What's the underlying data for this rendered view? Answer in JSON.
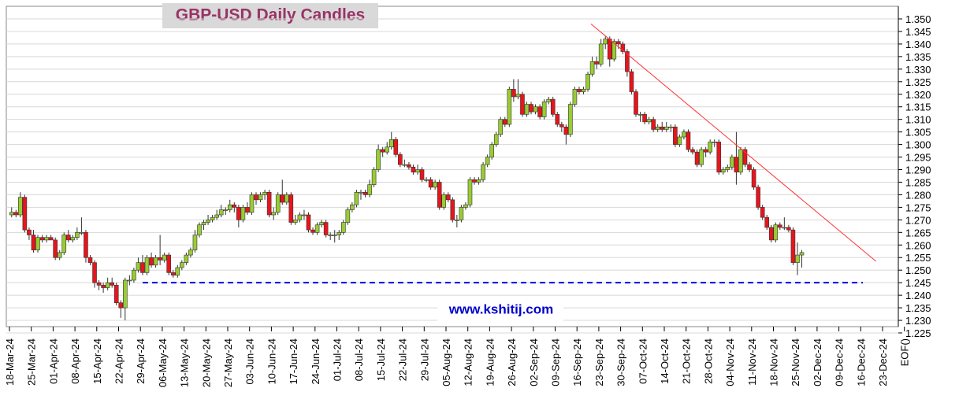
{
  "chart_data": {
    "type": "candlestick",
    "title": "GBP-USD Daily Candles",
    "watermark": "www.kshitij.com",
    "up_color": "#99cc33",
    "down_color": "#e8141c",
    "categories": [
      "18-Mar-24",
      "25-Mar-24",
      "01-Apr-24",
      "08-Apr-24",
      "15-Apr-24",
      "22-Apr-24",
      "29-Apr-24",
      "06-May-24",
      "13-May-24",
      "20-May-24",
      "27-May-24",
      "03-Jun-24",
      "10-Jun-24",
      "17-Jun-24",
      "24-Jun-24",
      "01-Jul-24",
      "08-Jul-24",
      "15-Jul-24",
      "22-Jul-24",
      "29-Jul-24",
      "05-Aug-24",
      "12-Aug-24",
      "19-Aug-24",
      "26-Aug-24",
      "02-Sep-24",
      "09-Sep-24",
      "16-Sep-24",
      "23-Sep-24",
      "30-Sep-24",
      "07-Oct-24",
      "14-Oct-24",
      "21-Oct-24",
      "28-Oct-24",
      "04-Nov-24",
      "11-Nov-24",
      "18-Nov-24",
      "25-Nov-24",
      "02-Dec-24",
      "09-Dec-24",
      "16-Dec-24",
      "23-Dec-24",
      "EOF()"
    ],
    "ylim": [
      1.225,
      1.35
    ],
    "yticks": [
      {
        "value": 1.225,
        "label": "1.225"
      },
      {
        "value": 1.23,
        "label": "1.230"
      },
      {
        "value": 1.235,
        "label": "1.235"
      },
      {
        "value": 1.24,
        "label": "1.240"
      },
      {
        "value": 1.245,
        "label": "1.245"
      },
      {
        "value": 1.25,
        "label": "1.250"
      },
      {
        "value": 1.255,
        "label": "1.255"
      },
      {
        "value": 1.26,
        "label": "1.260"
      },
      {
        "value": 1.265,
        "label": "1.265"
      },
      {
        "value": 1.27,
        "label": "1.270"
      },
      {
        "value": 1.275,
        "label": "1.275"
      },
      {
        "value": 1.28,
        "label": "1.280"
      },
      {
        "value": 1.285,
        "label": "1.285"
      },
      {
        "value": 1.29,
        "label": "1.290"
      },
      {
        "value": 1.295,
        "label": "1.295"
      },
      {
        "value": 1.3,
        "label": "1.300"
      },
      {
        "value": 1.305,
        "label": "1.305"
      },
      {
        "value": 1.31,
        "label": "1.310"
      },
      {
        "value": 1.315,
        "label": "1.315"
      },
      {
        "value": 1.32,
        "label": "1.320"
      },
      {
        "value": 1.325,
        "label": "1.325"
      },
      {
        "value": 1.33,
        "label": "1.330"
      },
      {
        "value": 1.335,
        "label": "1.335"
      },
      {
        "value": 1.34,
        "label": "1.340"
      },
      {
        "value": 1.345,
        "label": "1.345"
      },
      {
        "value": 1.35,
        "label": "1.350"
      }
    ],
    "grid": true,
    "trendline": {
      "x": [
        132.7,
        198
      ],
      "y": [
        1.348,
        1.2535
      ],
      "color": "#ff3333"
    },
    "hline": {
      "value": 1.245,
      "x": [
        30,
        195
      ],
      "color": "#0000ee"
    },
    "ohlc": [
      [
        1.272,
        1.275,
        1.271,
        1.273
      ],
      [
        1.273,
        1.274,
        1.271,
        1.272
      ],
      [
        1.272,
        1.281,
        1.271,
        1.279
      ],
      [
        1.279,
        1.28,
        1.265,
        1.266
      ],
      [
        1.266,
        1.267,
        1.262,
        1.264
      ],
      [
        1.264,
        1.266,
        1.257,
        1.258
      ],
      [
        1.258,
        1.264,
        1.257,
        1.263
      ],
      [
        1.263,
        1.264,
        1.261,
        1.262
      ],
      [
        1.262,
        1.264,
        1.261,
        1.263
      ],
      [
        1.263,
        1.264,
        1.262,
        1.262
      ],
      [
        1.262,
        1.263,
        1.254,
        1.255
      ],
      [
        1.255,
        1.258,
        1.254,
        1.257
      ],
      [
        1.257,
        1.265,
        1.256,
        1.264
      ],
      [
        1.264,
        1.266,
        1.261,
        1.262
      ],
      [
        1.262,
        1.264,
        1.261,
        1.263
      ],
      [
        1.263,
        1.267,
        1.262,
        1.265
      ],
      [
        1.265,
        1.271,
        1.264,
        1.265
      ],
      [
        1.265,
        1.266,
        1.253,
        1.255
      ],
      [
        1.255,
        1.256,
        1.252,
        1.253
      ],
      [
        1.253,
        1.254,
        1.243,
        1.245
      ],
      [
        1.245,
        1.246,
        1.242,
        1.244
      ],
      [
        1.244,
        1.245,
        1.241,
        1.243
      ],
      [
        1.243,
        1.247,
        1.242,
        1.245
      ],
      [
        1.245,
        1.247,
        1.243,
        1.244
      ],
      [
        1.244,
        1.245,
        1.236,
        1.237
      ],
      [
        1.237,
        1.238,
        1.231,
        1.235
      ],
      [
        1.235,
        1.247,
        1.23,
        1.246
      ],
      [
        1.246,
        1.248,
        1.244,
        1.246
      ],
      [
        1.246,
        1.251,
        1.245,
        1.25
      ],
      [
        1.25,
        1.255,
        1.249,
        1.253
      ],
      [
        1.253,
        1.256,
        1.248,
        1.249
      ],
      [
        1.249,
        1.256,
        1.248,
        1.255
      ],
      [
        1.255,
        1.257,
        1.251,
        1.252
      ],
      [
        1.252,
        1.256,
        1.251,
        1.255
      ],
      [
        1.255,
        1.264,
        1.252,
        1.254
      ],
      [
        1.254,
        1.257,
        1.253,
        1.256
      ],
      [
        1.256,
        1.257,
        1.248,
        1.249
      ],
      [
        1.249,
        1.25,
        1.247,
        1.248
      ],
      [
        1.248,
        1.252,
        1.247,
        1.251
      ],
      [
        1.251,
        1.254,
        1.25,
        1.253
      ],
      [
        1.253,
        1.257,
        1.252,
        1.256
      ],
      [
        1.256,
        1.259,
        1.255,
        1.258
      ],
      [
        1.258,
        1.266,
        1.257,
        1.264
      ],
      [
        1.264,
        1.269,
        1.263,
        1.268
      ],
      [
        1.268,
        1.27,
        1.266,
        1.269
      ],
      [
        1.269,
        1.272,
        1.268,
        1.27
      ],
      [
        1.27,
        1.272,
        1.269,
        1.271
      ],
      [
        1.271,
        1.274,
        1.27,
        1.272
      ],
      [
        1.272,
        1.276,
        1.271,
        1.274
      ],
      [
        1.274,
        1.275,
        1.272,
        1.274
      ],
      [
        1.274,
        1.278,
        1.273,
        1.276
      ],
      [
        1.276,
        1.277,
        1.273,
        1.275
      ],
      [
        1.275,
        1.276,
        1.267,
        1.27
      ],
      [
        1.27,
        1.276,
        1.269,
        1.275
      ],
      [
        1.275,
        1.277,
        1.272,
        1.273
      ],
      [
        1.273,
        1.281,
        1.272,
        1.28
      ],
      [
        1.28,
        1.281,
        1.276,
        1.278
      ],
      [
        1.278,
        1.281,
        1.277,
        1.28
      ],
      [
        1.28,
        1.282,
        1.278,
        1.281
      ],
      [
        1.281,
        1.282,
        1.271,
        1.272
      ],
      [
        1.272,
        1.275,
        1.27,
        1.273
      ],
      [
        1.273,
        1.281,
        1.272,
        1.28
      ],
      [
        1.28,
        1.286,
        1.276,
        1.277
      ],
      [
        1.277,
        1.281,
        1.276,
        1.28
      ],
      [
        1.28,
        1.281,
        1.268,
        1.269
      ],
      [
        1.269,
        1.272,
        1.268,
        1.27
      ],
      [
        1.27,
        1.273,
        1.269,
        1.272
      ],
      [
        1.272,
        1.274,
        1.27,
        1.272
      ],
      [
        1.272,
        1.273,
        1.265,
        1.266
      ],
      [
        1.266,
        1.267,
        1.264,
        1.265
      ],
      [
        1.265,
        1.269,
        1.264,
        1.268
      ],
      [
        1.268,
        1.27,
        1.267,
        1.269
      ],
      [
        1.269,
        1.27,
        1.263,
        1.264
      ],
      [
        1.264,
        1.265,
        1.262,
        1.264
      ],
      [
        1.264,
        1.266,
        1.261,
        1.264
      ],
      [
        1.264,
        1.266,
        1.262,
        1.265
      ],
      [
        1.265,
        1.27,
        1.264,
        1.269
      ],
      [
        1.269,
        1.275,
        1.268,
        1.274
      ],
      [
        1.274,
        1.277,
        1.273,
        1.276
      ],
      [
        1.276,
        1.282,
        1.275,
        1.281
      ],
      [
        1.281,
        1.282,
        1.278,
        1.281
      ],
      [
        1.281,
        1.282,
        1.279,
        1.28
      ],
      [
        1.28,
        1.286,
        1.279,
        1.284
      ],
      [
        1.284,
        1.291,
        1.283,
        1.29
      ],
      [
        1.29,
        1.3,
        1.289,
        1.298
      ],
      [
        1.298,
        1.299,
        1.295,
        1.297
      ],
      [
        1.297,
        1.301,
        1.296,
        1.299
      ],
      [
        1.299,
        1.305,
        1.298,
        1.302
      ],
      [
        1.302,
        1.303,
        1.295,
        1.296
      ],
      [
        1.296,
        1.297,
        1.291,
        1.292
      ],
      [
        1.292,
        1.294,
        1.291,
        1.292
      ],
      [
        1.292,
        1.293,
        1.29,
        1.291
      ],
      [
        1.291,
        1.292,
        1.288,
        1.289
      ],
      [
        1.289,
        1.292,
        1.288,
        1.29
      ],
      [
        1.29,
        1.291,
        1.285,
        1.286
      ],
      [
        1.286,
        1.287,
        1.285,
        1.286
      ],
      [
        1.286,
        1.287,
        1.282,
        1.283
      ],
      [
        1.283,
        1.286,
        1.282,
        1.285
      ],
      [
        1.285,
        1.286,
        1.274,
        1.275
      ],
      [
        1.275,
        1.281,
        1.274,
        1.28
      ],
      [
        1.28,
        1.281,
        1.277,
        1.278
      ],
      [
        1.278,
        1.279,
        1.269,
        1.27
      ],
      [
        1.27,
        1.272,
        1.267,
        1.27
      ],
      [
        1.27,
        1.276,
        1.269,
        1.275
      ],
      [
        1.275,
        1.277,
        1.274,
        1.276
      ],
      [
        1.276,
        1.287,
        1.275,
        1.286
      ],
      [
        1.286,
        1.287,
        1.284,
        1.285
      ],
      [
        1.285,
        1.287,
        1.284,
        1.286
      ],
      [
        1.286,
        1.293,
        1.285,
        1.292
      ],
      [
        1.292,
        1.296,
        1.291,
        1.295
      ],
      [
        1.295,
        1.301,
        1.294,
        1.3
      ],
      [
        1.3,
        1.305,
        1.299,
        1.304
      ],
      [
        1.304,
        1.311,
        1.303,
        1.31
      ],
      [
        1.31,
        1.311,
        1.307,
        1.308
      ],
      [
        1.308,
        1.323,
        1.307,
        1.322
      ],
      [
        1.322,
        1.326,
        1.317,
        1.319
      ],
      [
        1.319,
        1.326,
        1.318,
        1.32
      ],
      [
        1.32,
        1.321,
        1.311,
        1.312
      ],
      [
        1.312,
        1.317,
        1.311,
        1.316
      ],
      [
        1.316,
        1.317,
        1.312,
        1.313
      ],
      [
        1.313,
        1.316,
        1.312,
        1.315
      ],
      [
        1.315,
        1.316,
        1.31,
        1.311
      ],
      [
        1.311,
        1.318,
        1.31,
        1.317
      ],
      [
        1.317,
        1.319,
        1.316,
        1.318
      ],
      [
        1.318,
        1.319,
        1.311,
        1.312
      ],
      [
        1.312,
        1.313,
        1.307,
        1.308
      ],
      [
        1.308,
        1.309,
        1.305,
        1.307
      ],
      [
        1.307,
        1.308,
        1.3,
        1.304
      ],
      [
        1.304,
        1.317,
        1.303,
        1.316
      ],
      [
        1.316,
        1.323,
        1.315,
        1.322
      ],
      [
        1.322,
        1.323,
        1.32,
        1.321
      ],
      [
        1.321,
        1.323,
        1.32,
        1.322
      ],
      [
        1.322,
        1.329,
        1.321,
        1.328
      ],
      [
        1.328,
        1.335,
        1.327,
        1.333
      ],
      [
        1.333,
        1.335,
        1.33,
        1.332
      ],
      [
        1.332,
        1.342,
        1.331,
        1.34
      ],
      [
        1.34,
        1.343,
        1.338,
        1.342
      ],
      [
        1.342,
        1.343,
        1.331,
        1.334
      ],
      [
        1.334,
        1.342,
        1.333,
        1.341
      ],
      [
        1.341,
        1.342,
        1.338,
        1.34
      ],
      [
        1.34,
        1.341,
        1.336,
        1.337
      ],
      [
        1.337,
        1.338,
        1.327,
        1.329
      ],
      [
        1.329,
        1.33,
        1.32,
        1.321
      ],
      [
        1.321,
        1.322,
        1.311,
        1.312
      ],
      [
        1.312,
        1.313,
        1.309,
        1.312
      ],
      [
        1.312,
        1.313,
        1.308,
        1.309
      ],
      [
        1.309,
        1.311,
        1.308,
        1.31
      ],
      [
        1.31,
        1.311,
        1.305,
        1.306
      ],
      [
        1.306,
        1.308,
        1.305,
        1.307
      ],
      [
        1.307,
        1.309,
        1.305,
        1.306
      ],
      [
        1.306,
        1.309,
        1.305,
        1.307
      ],
      [
        1.307,
        1.308,
        1.305,
        1.307
      ],
      [
        1.307,
        1.308,
        1.299,
        1.3
      ],
      [
        1.3,
        1.304,
        1.299,
        1.303
      ],
      [
        1.303,
        1.306,
        1.302,
        1.305
      ],
      [
        1.305,
        1.306,
        1.297,
        1.298
      ],
      [
        1.298,
        1.299,
        1.296,
        1.297
      ],
      [
        1.297,
        1.298,
        1.291,
        1.292
      ],
      [
        1.292,
        1.299,
        1.291,
        1.298
      ],
      [
        1.298,
        1.299,
        1.295,
        1.297
      ],
      [
        1.297,
        1.302,
        1.296,
        1.301
      ],
      [
        1.301,
        1.302,
        1.299,
        1.301
      ],
      [
        1.301,
        1.302,
        1.288,
        1.289
      ],
      [
        1.289,
        1.291,
        1.288,
        1.29
      ],
      [
        1.29,
        1.292,
        1.289,
        1.291
      ],
      [
        1.291,
        1.296,
        1.29,
        1.295
      ],
      [
        1.295,
        1.305,
        1.284,
        1.289
      ],
      [
        1.289,
        1.299,
        1.288,
        1.298
      ],
      [
        1.298,
        1.299,
        1.291,
        1.292
      ],
      [
        1.292,
        1.293,
        1.289,
        1.29
      ],
      [
        1.29,
        1.291,
        1.282,
        1.283
      ],
      [
        1.283,
        1.284,
        1.274,
        1.275
      ],
      [
        1.275,
        1.276,
        1.27,
        1.271
      ],
      [
        1.271,
        1.272,
        1.266,
        1.267
      ],
      [
        1.267,
        1.268,
        1.261,
        1.262
      ],
      [
        1.262,
        1.269,
        1.261,
        1.268
      ],
      [
        1.268,
        1.269,
        1.266,
        1.267
      ],
      [
        1.267,
        1.271,
        1.266,
        1.267
      ],
      [
        1.267,
        1.268,
        1.265,
        1.266
      ],
      [
        1.266,
        1.267,
        1.252,
        1.253
      ],
      [
        1.253,
        1.261,
        1.248,
        1.256
      ],
      [
        1.256,
        1.258,
        1.251,
        1.257
      ]
    ]
  }
}
